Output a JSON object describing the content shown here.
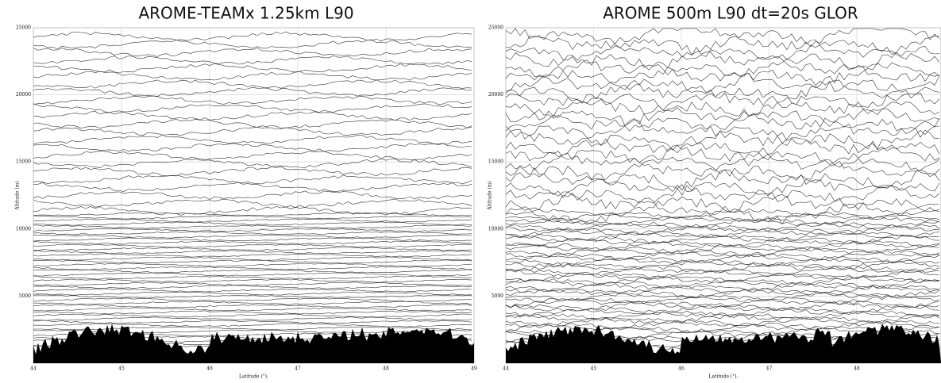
{
  "chart_data": [
    {
      "type": "contour",
      "title": "AROME-TEAMx 1.25km L90",
      "xlabel": "Latitude (°).",
      "ylabel": "Altitude (m)",
      "xlim": [
        44,
        49
      ],
      "xticks": [
        44,
        45,
        46,
        47,
        48,
        49
      ],
      "ylim": [
        0,
        25000
      ],
      "yticks": [
        5000,
        10000,
        15000,
        20000,
        25000
      ],
      "grid": true
    },
    {
      "type": "contour",
      "title": "AROME 500m L90 dt=20s GLOR",
      "xlabel": "Latitude (°).",
      "ylabel": "Altitude (m)",
      "xlim": [
        44,
        48.96
      ],
      "xticks": [
        44,
        45,
        46,
        47,
        48
      ],
      "ylim": [
        0,
        25000
      ],
      "yticks": [
        5000,
        10000,
        15000,
        20000,
        25000
      ],
      "grid": true
    }
  ]
}
